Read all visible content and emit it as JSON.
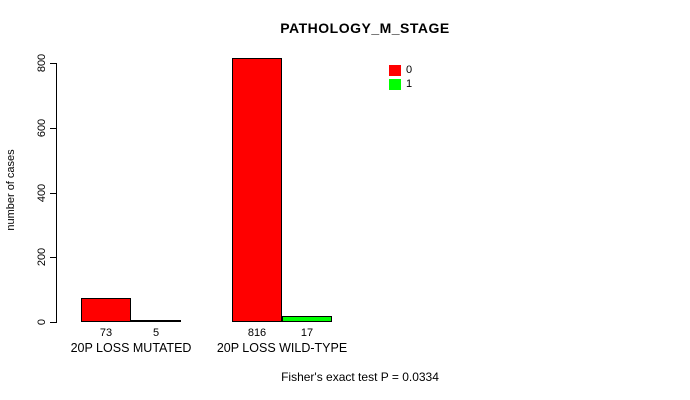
{
  "chart_data": {
    "type": "bar",
    "title": "PATHOLOGY_M_STAGE",
    "ylabel": "number of cases",
    "xlabel": "",
    "ylim": [
      0,
      800
    ],
    "yticks": [
      0,
      200,
      400,
      600,
      800
    ],
    "categories": [
      "20P LOSS MUTATED",
      "20P LOSS WILD-TYPE"
    ],
    "series": [
      {
        "name": "0",
        "color": "#FF0000",
        "values": [
          73,
          816
        ]
      },
      {
        "name": "1",
        "color": "#00FF00",
        "values": [
          5,
          17
        ]
      }
    ],
    "bar_value_labels": [
      [
        "73",
        "816"
      ],
      [
        "5",
        "17"
      ]
    ],
    "legend_position": "top-right",
    "grid": false,
    "annotation": "Fisher's exact test P = 0.0334"
  }
}
